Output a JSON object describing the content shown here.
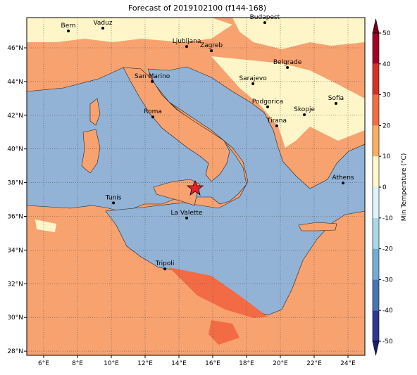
{
  "title": "Forecast of 2019102100 (f144-168)",
  "map": {
    "lon_ticks": [
      {
        "value": 6,
        "label": "6°E"
      },
      {
        "value": 8,
        "label": "8°E"
      },
      {
        "value": 10,
        "label": "10°E"
      },
      {
        "value": 12,
        "label": "12°E"
      },
      {
        "value": 14,
        "label": "14°E"
      },
      {
        "value": 16,
        "label": "16°E"
      },
      {
        "value": 18,
        "label": "18°E"
      },
      {
        "value": 20,
        "label": "20°E"
      },
      {
        "value": 22,
        "label": "22°E"
      },
      {
        "value": 24,
        "label": "24°E"
      }
    ],
    "lat_ticks": [
      {
        "value": 28,
        "label": "28°N"
      },
      {
        "value": 30,
        "label": "30°N"
      },
      {
        "value": 32,
        "label": "32°N"
      },
      {
        "value": 34,
        "label": "34°N"
      },
      {
        "value": 36,
        "label": "36°N"
      },
      {
        "value": 38,
        "label": "38°N"
      },
      {
        "value": 40,
        "label": "40°N"
      },
      {
        "value": 42,
        "label": "42°N"
      },
      {
        "value": 44,
        "label": "44°N"
      },
      {
        "value": 46,
        "label": "46°N"
      }
    ],
    "cities": [
      {
        "name": "Bern",
        "lon": 7.46,
        "lat": 47.0
      },
      {
        "name": "Vaduz",
        "lon": 9.5,
        "lat": 47.17
      },
      {
        "name": "Budapest",
        "lon": 19.08,
        "lat": 47.5
      },
      {
        "name": "Ljubljana",
        "lon": 14.46,
        "lat": 46.08
      },
      {
        "name": "Zagreb",
        "lon": 15.92,
        "lat": 45.83
      },
      {
        "name": "Belgrade",
        "lon": 20.42,
        "lat": 44.83
      },
      {
        "name": "Sarajevo",
        "lon": 18.38,
        "lat": 43.87
      },
      {
        "name": "San Marino",
        "lon": 12.42,
        "lat": 44.0
      },
      {
        "name": "Sofia",
        "lon": 23.29,
        "lat": 42.7
      },
      {
        "name": "Podgorica",
        "lon": 19.25,
        "lat": 42.5
      },
      {
        "name": "Skopje",
        "lon": 21.42,
        "lat": 42.03
      },
      {
        "name": "Roma",
        "lon": 12.46,
        "lat": 41.9
      },
      {
        "name": "Tirana",
        "lon": 19.79,
        "lat": 41.37
      },
      {
        "name": "Athens",
        "lon": 23.71,
        "lat": 37.98
      },
      {
        "name": "Tunis",
        "lon": 10.13,
        "lat": 36.8
      },
      {
        "name": "La Valette",
        "lon": 14.46,
        "lat": 35.9
      },
      {
        "name": "Tripoli",
        "lon": 13.17,
        "lat": 32.88
      }
    ],
    "colorbar": {
      "label": "Min Temperature (°C)",
      "ticks": [
        -50,
        -40,
        -30,
        -20,
        -10,
        0,
        10,
        20,
        30,
        40,
        50
      ],
      "colors": [
        "#313695",
        "#4575b4",
        "#74add1",
        "#abd9e9",
        "#e0f3f8",
        "#fef8cc",
        "#fdae61",
        "#f46d43",
        "#d73027",
        "#a50026"
      ],
      "under": "#1a1f6e",
      "over": "#7a0018"
    }
  }
}
